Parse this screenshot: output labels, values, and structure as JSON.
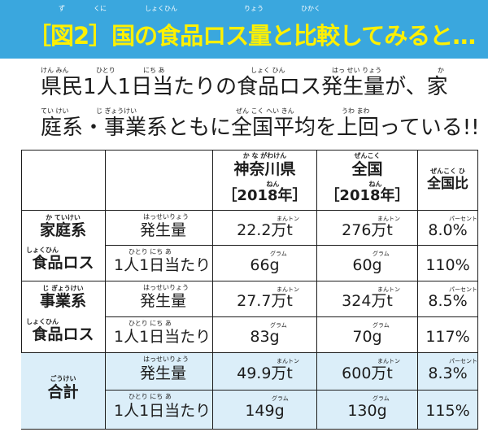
{
  "header": {
    "title": "［図2］国の食品ロス量と比較してみると…",
    "ruby": {
      "zu": "ず",
      "kuni": "くに",
      "shokuhin": "しょくひん",
      "ryou": "りょう",
      "hikaku": "ひかく"
    }
  },
  "subtitle": {
    "line1": "県民1人1日当たりの食品ロス発生量が、家",
    "line2": "庭系・事業系ともに全国平均を上回っている!!",
    "ruby": {
      "kenmin": "けん みん",
      "hitori": "ひとり",
      "nichi": "にち あ",
      "shokuhin": "しょく ひん",
      "hasseiryou": "はっ せい りょう",
      "ka": "か",
      "teikei": "てい けい",
      "jigyoukei": "じ ぎょうけい",
      "zenkokuheikin": "ぜん こく へい きん",
      "uwamawa": "うわ まわ"
    }
  },
  "table": {
    "columns": [
      {
        "label": "神奈川県",
        "ruby": "か な がわけん",
        "sub": "［2018年］",
        "sub_ruby": "ねん"
      },
      {
        "label": "全国",
        "ruby": "ぜんこく",
        "sub": "［2018年］",
        "sub_ruby": "ねん"
      },
      {
        "label": "全国比",
        "ruby": "ぜんこく ひ"
      }
    ],
    "groups": [
      {
        "label_top": "家庭系",
        "ruby_top": "か ていけい",
        "label_bottom": "食品ロス",
        "ruby_bottom": "しょくひん"
      },
      {
        "label_top": "事業系",
        "ruby_top": "じ ぎょうけい",
        "label_bottom": "食品ロス",
        "ruby_bottom": "しょくひん"
      },
      {
        "label": "合計",
        "ruby": "ごうけい"
      }
    ],
    "metric_labels": {
      "hassei": "発生量",
      "hassei_ruby": "はっせいりょう",
      "perday": "1人1日当たり",
      "perday_ruby": "ひとり にち あ"
    },
    "units": {
      "mant": "まんトン",
      "gram": "グラム",
      "percent": "パーセント"
    },
    "rows": [
      {
        "metric": "発生量",
        "kanagawa": "22.2万t",
        "zenkoku": "276万t",
        "ratio": "8.0%"
      },
      {
        "metric": "1人1日当たり",
        "kanagawa": "66g",
        "zenkoku": "60g",
        "ratio": "110%"
      },
      {
        "metric": "発生量",
        "kanagawa": "27.7万t",
        "zenkoku": "324万t",
        "ratio": "8.5%"
      },
      {
        "metric": "1人1日当たり",
        "kanagawa": "83g",
        "zenkoku": "70g",
        "ratio": "117%"
      },
      {
        "metric": "発生量",
        "kanagawa": "49.9万t",
        "zenkoku": "600万t",
        "ratio": "8.3%"
      },
      {
        "metric": "1人1日当たり",
        "kanagawa": "149g",
        "zenkoku": "130g",
        "ratio": "115%"
      }
    ]
  },
  "colors": {
    "header_bg": "#3aa7de",
    "title": "#fff000",
    "total_row_bg": "#dbeef9",
    "line": "#1c1c1c"
  }
}
